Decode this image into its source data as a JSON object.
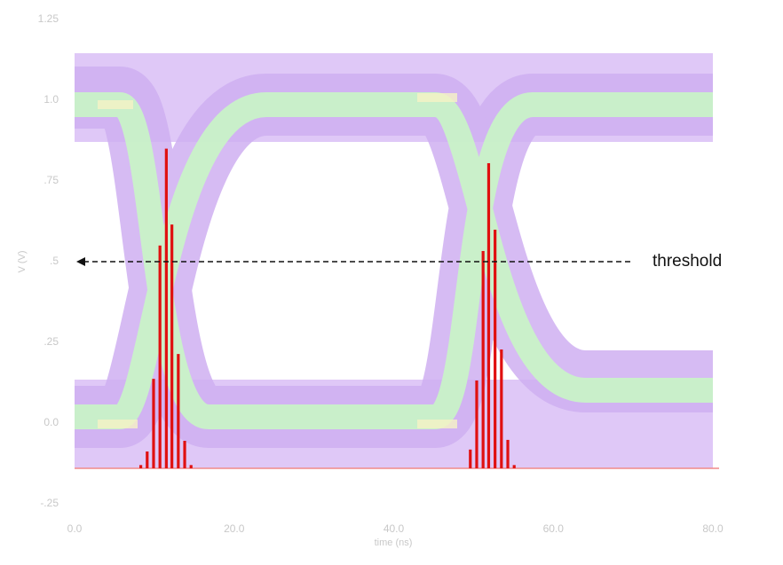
{
  "chart_data": {
    "type": "eye",
    "x_label": "time (ns)",
    "y_label": "V (V)",
    "xlim": [
      0,
      80
    ],
    "ylim": [
      -0.25,
      1.25
    ],
    "xticks": [
      {
        "value": 0,
        "label": "0.0"
      },
      {
        "value": 20,
        "label": "20.0"
      },
      {
        "value": 40,
        "label": "40.0"
      },
      {
        "value": 60,
        "label": "60.0"
      },
      {
        "value": 80,
        "label": "80.0"
      }
    ],
    "yticks": [
      {
        "value": -0.25,
        "label": "-.25"
      },
      {
        "value": 0,
        "label": "0.0"
      },
      {
        "value": 0.25,
        "label": ".25"
      },
      {
        "value": 0.5,
        "label": ".5"
      },
      {
        "value": 0.75,
        "label": ".75"
      },
      {
        "value": 1,
        "label": "1.0"
      },
      1.25
    ],
    "threshold": 0.5,
    "annotation": "threshold",
    "baseline": -0.14,
    "histogram": {
      "color": "#e01010",
      "x": [
        8.3,
        9.1,
        9.9,
        10.7,
        11.5,
        12.2,
        13.0,
        13.8,
        14.6,
        49.6,
        50.4,
        51.2,
        51.9,
        52.7,
        53.5,
        54.3,
        55.1
      ],
      "values": [
        -0.13,
        -0.088,
        0.137,
        0.55,
        0.85,
        0.615,
        0.214,
        -0.055,
        -0.13,
        -0.082,
        0.132,
        0.533,
        0.805,
        0.599,
        0.228,
        -0.052,
        -0.13
      ]
    }
  }
}
